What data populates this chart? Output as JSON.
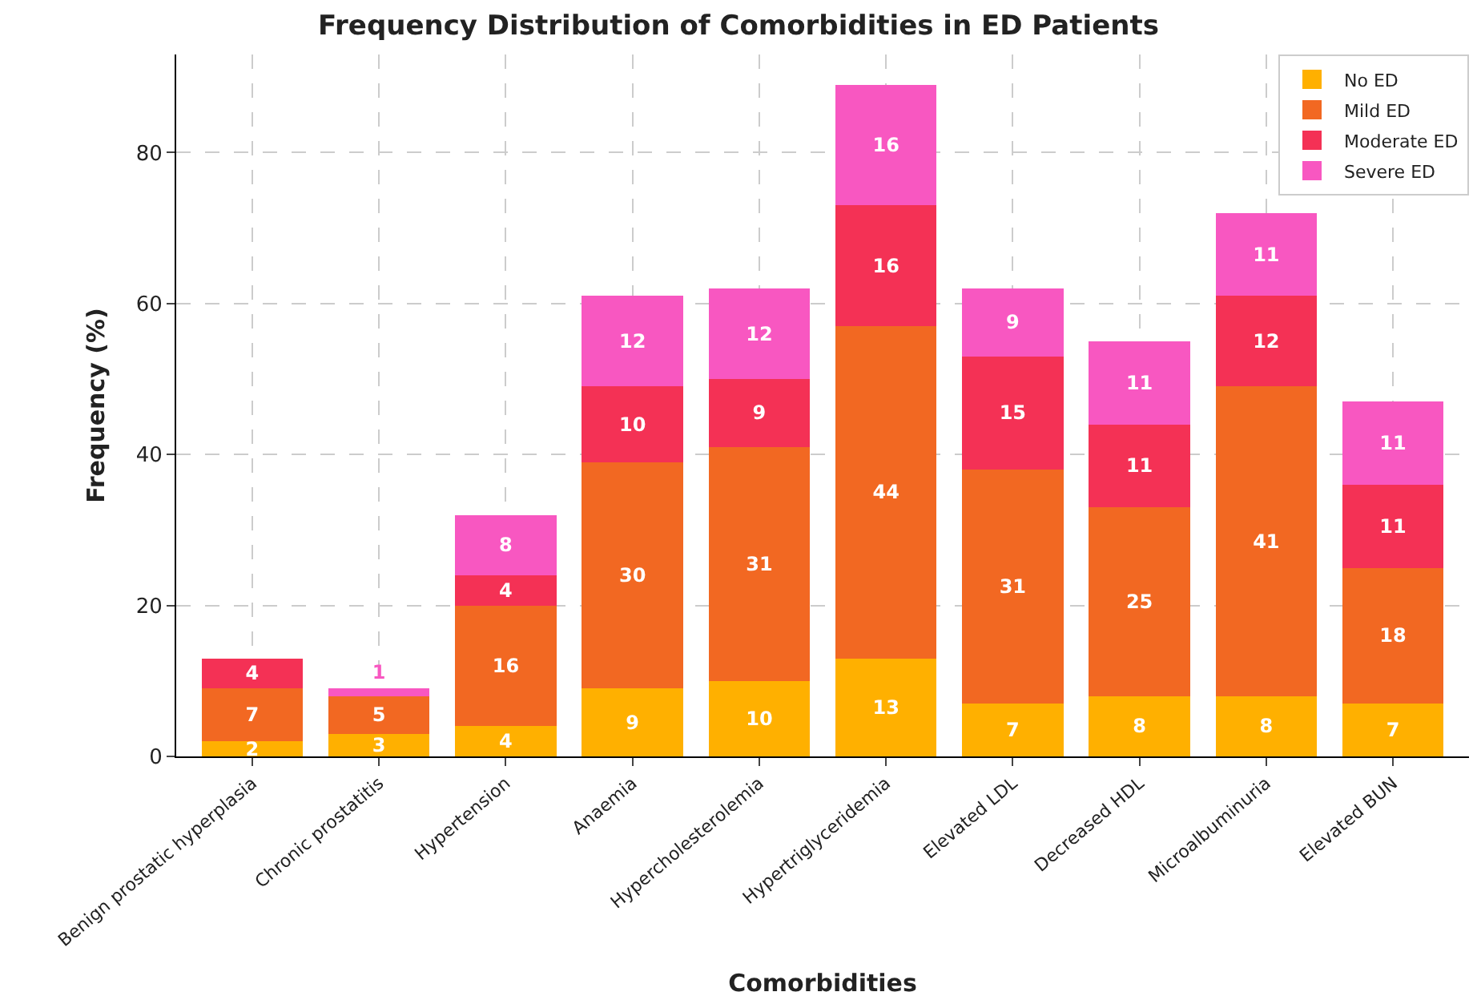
{
  "chart_data": {
    "type": "bar",
    "stacked": true,
    "title": "Frequency Distribution of Comorbidities in ED Patients",
    "xlabel": "Comorbidities",
    "ylabel": "Frequency (%)",
    "categories": [
      "Benign prostatic hyperplasia",
      "Chronic prostatitis",
      "Hypertension",
      "Anaemia",
      "Hypercholesterolemia",
      "Hypertriglyceridemia",
      "Elevated LDL",
      "Decreased HDL",
      "Microalbuminuria",
      "Elevated BUN"
    ],
    "series": [
      {
        "name": "No ED",
        "color": "#ffb000",
        "values": [
          2,
          3,
          4,
          9,
          10,
          13,
          7,
          8,
          8,
          7
        ]
      },
      {
        "name": "Mild ED",
        "color": "#f26822",
        "values": [
          7,
          5,
          16,
          30,
          31,
          44,
          31,
          25,
          41,
          18
        ]
      },
      {
        "name": "Moderate ED",
        "color": "#f43155",
        "values": [
          4,
          null,
          4,
          10,
          9,
          16,
          15,
          11,
          12,
          11
        ]
      },
      {
        "name": "Severe ED",
        "color": "#f857c1",
        "values": [
          null,
          1,
          8,
          12,
          12,
          16,
          9,
          11,
          11,
          11
        ]
      }
    ],
    "ylim": [
      0,
      93
    ],
    "yticks": [
      0,
      20,
      40,
      60,
      80
    ],
    "grid": true,
    "legend": "top right",
    "data_labels": true
  }
}
